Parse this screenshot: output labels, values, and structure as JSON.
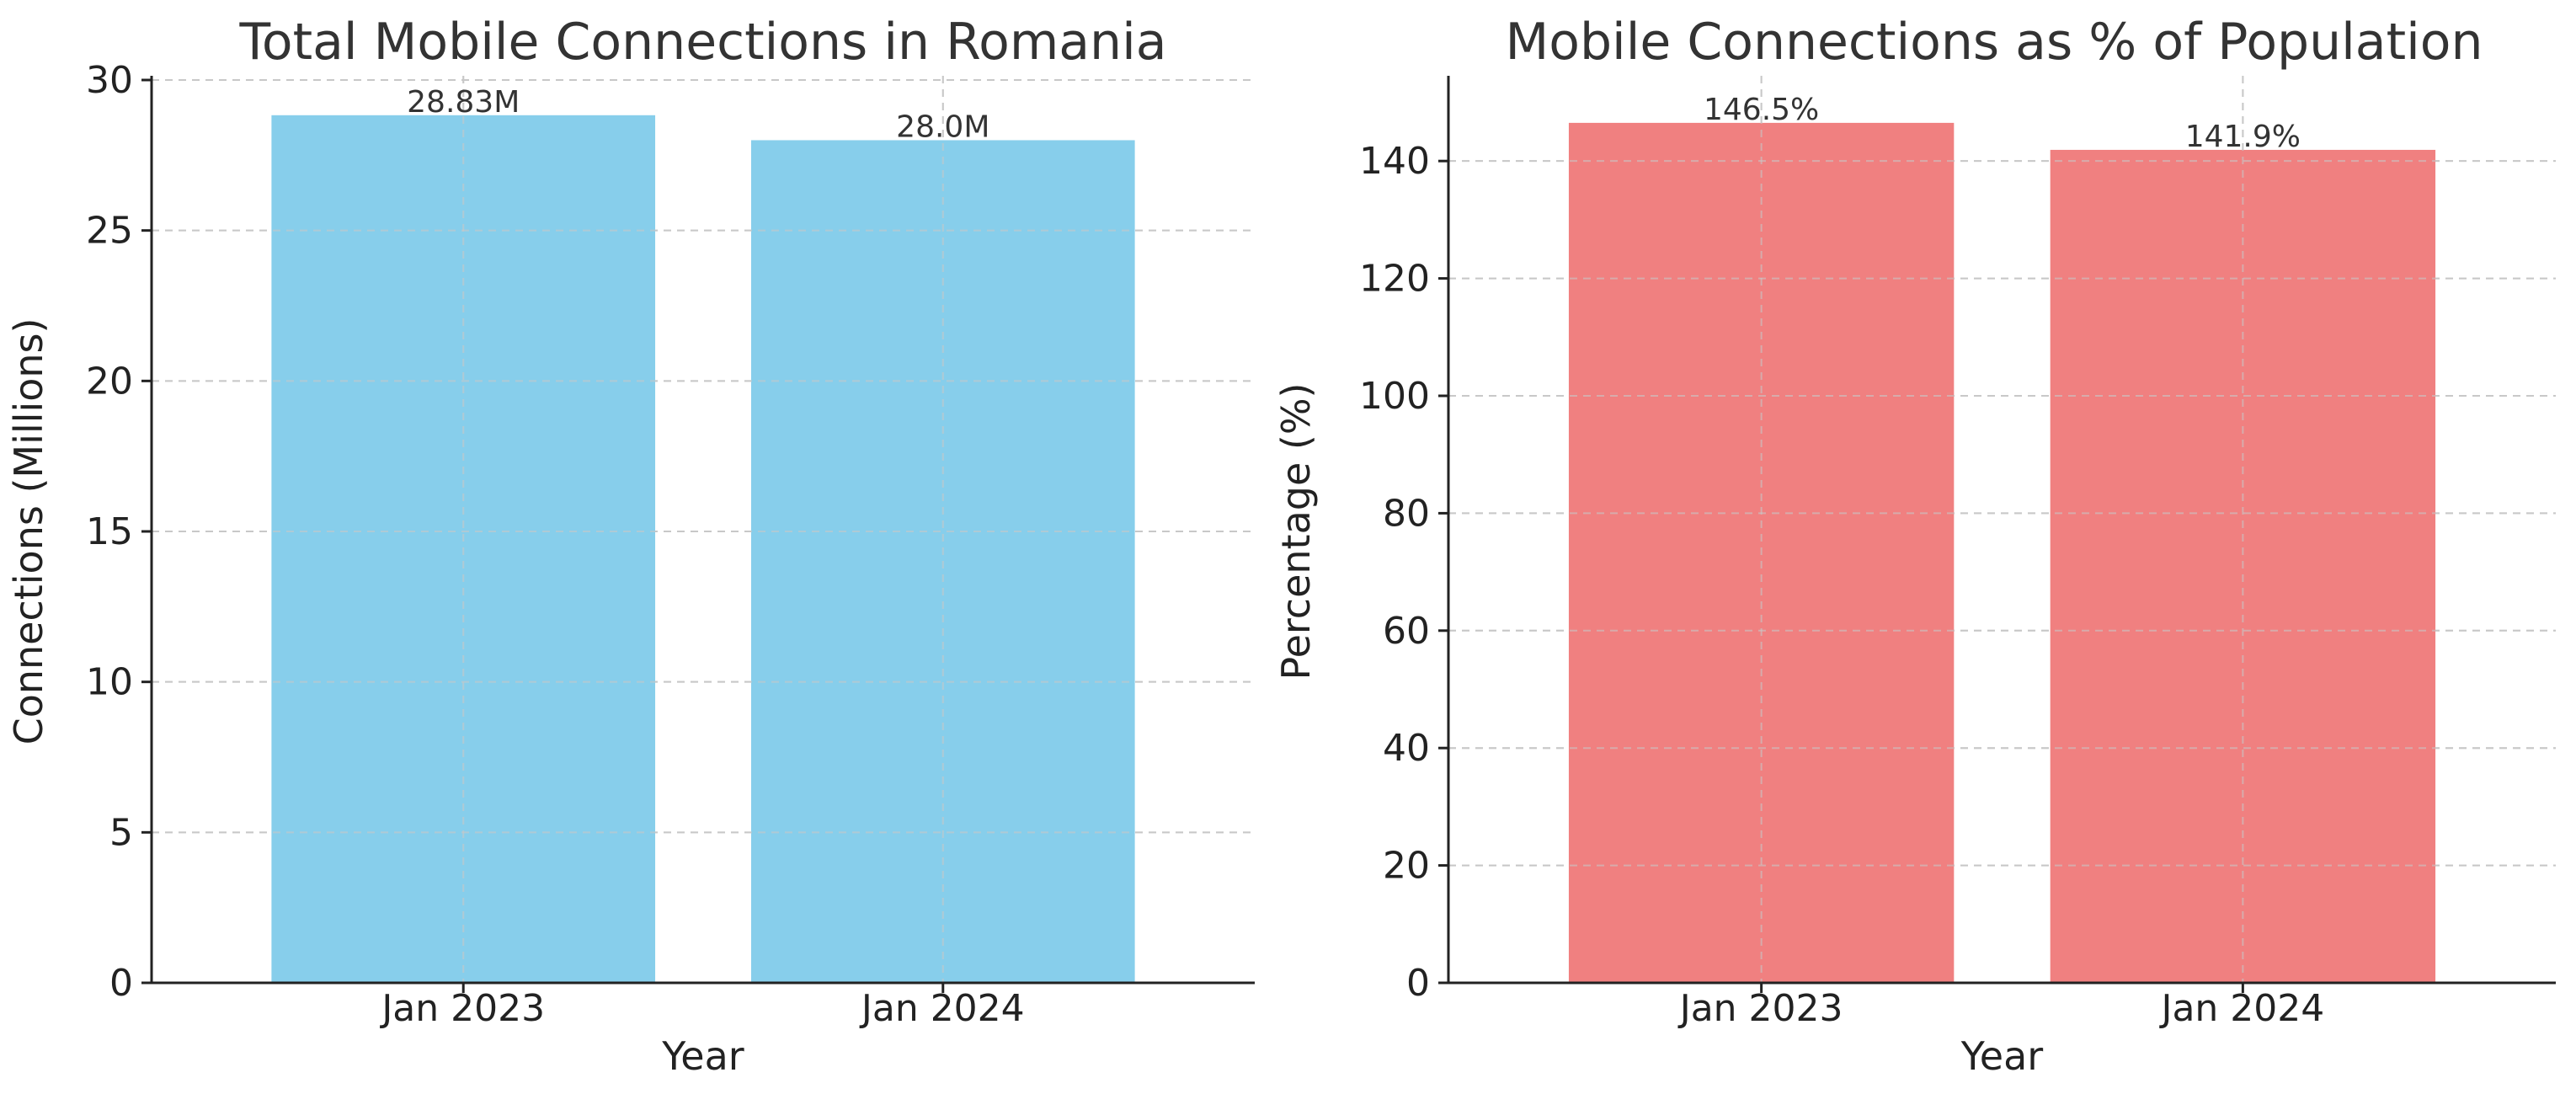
{
  "chart_data": [
    {
      "type": "bar",
      "title": "Total Mobile Connections in Romania",
      "xlabel": "Year",
      "ylabel": "Connections (Millions)",
      "categories": [
        "Jan 2023",
        "Jan 2024"
      ],
      "values": [
        28.83,
        28.0
      ],
      "data_labels": [
        "28.83M",
        "28.0M"
      ],
      "ylim": [
        0,
        30
      ],
      "yticks": [
        0,
        5,
        10,
        15,
        20,
        25,
        30
      ],
      "color": "#87CEEB",
      "grid": true
    },
    {
      "type": "bar",
      "title": "Mobile Connections as % of Population",
      "xlabel": "Year",
      "ylabel": "Percentage (%)",
      "categories": [
        "Jan 2023",
        "Jan 2024"
      ],
      "values": [
        146.5,
        141.9
      ],
      "data_labels": [
        "146.5%",
        "141.9%"
      ],
      "ylim": [
        0,
        153.8
      ],
      "yticks": [
        0,
        20,
        40,
        60,
        80,
        100,
        120,
        140
      ],
      "color": "#F08080",
      "grid": true
    }
  ]
}
